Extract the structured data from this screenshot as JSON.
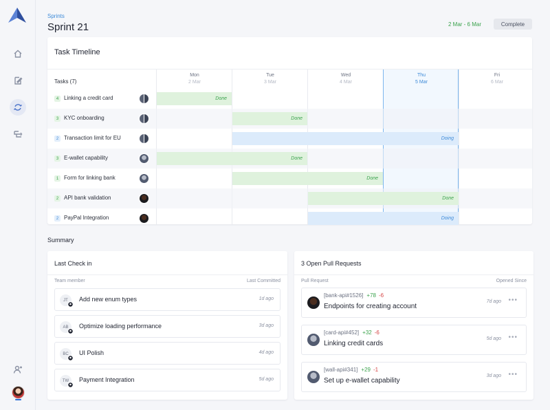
{
  "app": {
    "brand_color": "#3f63b5",
    "accent": "#3d8ad8"
  },
  "sidebar": {
    "items": [
      {
        "icon": "home-icon",
        "active": false
      },
      {
        "icon": "edit-icon",
        "active": false
      },
      {
        "icon": "sprint-cycle-icon",
        "active": true
      },
      {
        "icon": "workflow-icon",
        "active": false
      }
    ],
    "bottom_icon": "user-add-icon"
  },
  "header": {
    "breadcrumb": "Sprints",
    "title": "Sprint 21",
    "date_range": "2 Mar - 6 Mar",
    "complete_label": "Complete"
  },
  "timeline": {
    "title": "Task Timeline",
    "tasks_header": "Tasks (7)",
    "days": [
      {
        "name": "Mon",
        "date": "2 Mar",
        "today": false
      },
      {
        "name": "Tue",
        "date": "3 Mar",
        "today": false
      },
      {
        "name": "Wed",
        "date": "4 Mar",
        "today": false
      },
      {
        "name": "Thu",
        "date": "5 Mar",
        "today": true
      },
      {
        "name": "Fri",
        "date": "6 Mar",
        "today": false
      }
    ],
    "tasks": [
      {
        "points": "4",
        "color": "g",
        "name": "Linking a credit card",
        "avatar": "pair",
        "bar_start": 0,
        "bar_end": 1,
        "status": "Done"
      },
      {
        "points": "3",
        "color": "g",
        "name": "KYC onboarding",
        "avatar": "pair",
        "bar_start": 1,
        "bar_end": 2,
        "status": "Done"
      },
      {
        "points": "2",
        "color": "b",
        "name": "Transaction limit for EU",
        "avatar": "pair",
        "bar_start": 1,
        "bar_end": 4,
        "status": "Doing"
      },
      {
        "points": "3",
        "color": "g",
        "name": "E-wallet capability",
        "avatar": "gray",
        "bar_start": 0,
        "bar_end": 2,
        "status": "Done"
      },
      {
        "points": "1",
        "color": "g",
        "name": "Form for linking bank",
        "avatar": "gray",
        "bar_start": 1,
        "bar_end": 3,
        "status": "Done"
      },
      {
        "points": "2",
        "color": "g",
        "name": "API bank validation",
        "avatar": "dark",
        "bar_start": 2,
        "bar_end": 4,
        "status": "Done"
      },
      {
        "points": "2",
        "color": "b",
        "name": "PayPal Integration",
        "avatar": "dark",
        "bar_start": 2,
        "bar_end": 4,
        "status": "Doing"
      }
    ]
  },
  "summary": {
    "label": "Summary",
    "checkin": {
      "title": "Last Check in",
      "col_member": "Team member",
      "col_committed": "Last Committed",
      "items": [
        {
          "initials": "JT",
          "text": "Add new enum types",
          "time": "1d ago"
        },
        {
          "initials": "AB",
          "text": "Optimize loading performance",
          "time": "3d ago"
        },
        {
          "initials": "BC",
          "text": "UI Polish",
          "time": "4d ago"
        },
        {
          "initials": "TW",
          "text": "Payment Integration",
          "time": "5d ago"
        }
      ]
    },
    "pulls": {
      "title": "3 Open Pull Requests",
      "col_request": "Pull Request",
      "col_opened": "Opened Since",
      "items": [
        {
          "ref": "[bank-api#1526]",
          "add": "+78",
          "del": "-6",
          "title": "Endpoints for creating account",
          "time": "7d ago",
          "avatar": "dark"
        },
        {
          "ref": "[card-api#452]",
          "add": "+32",
          "del": "-6",
          "title": "Linking credit cards",
          "time": "5d ago",
          "avatar": "gray"
        },
        {
          "ref": "[wall-api#341]",
          "add": "+29",
          "del": "-1",
          "title": "Set up e-wallet capability",
          "time": "3d ago",
          "avatar": "gray"
        }
      ]
    }
  }
}
